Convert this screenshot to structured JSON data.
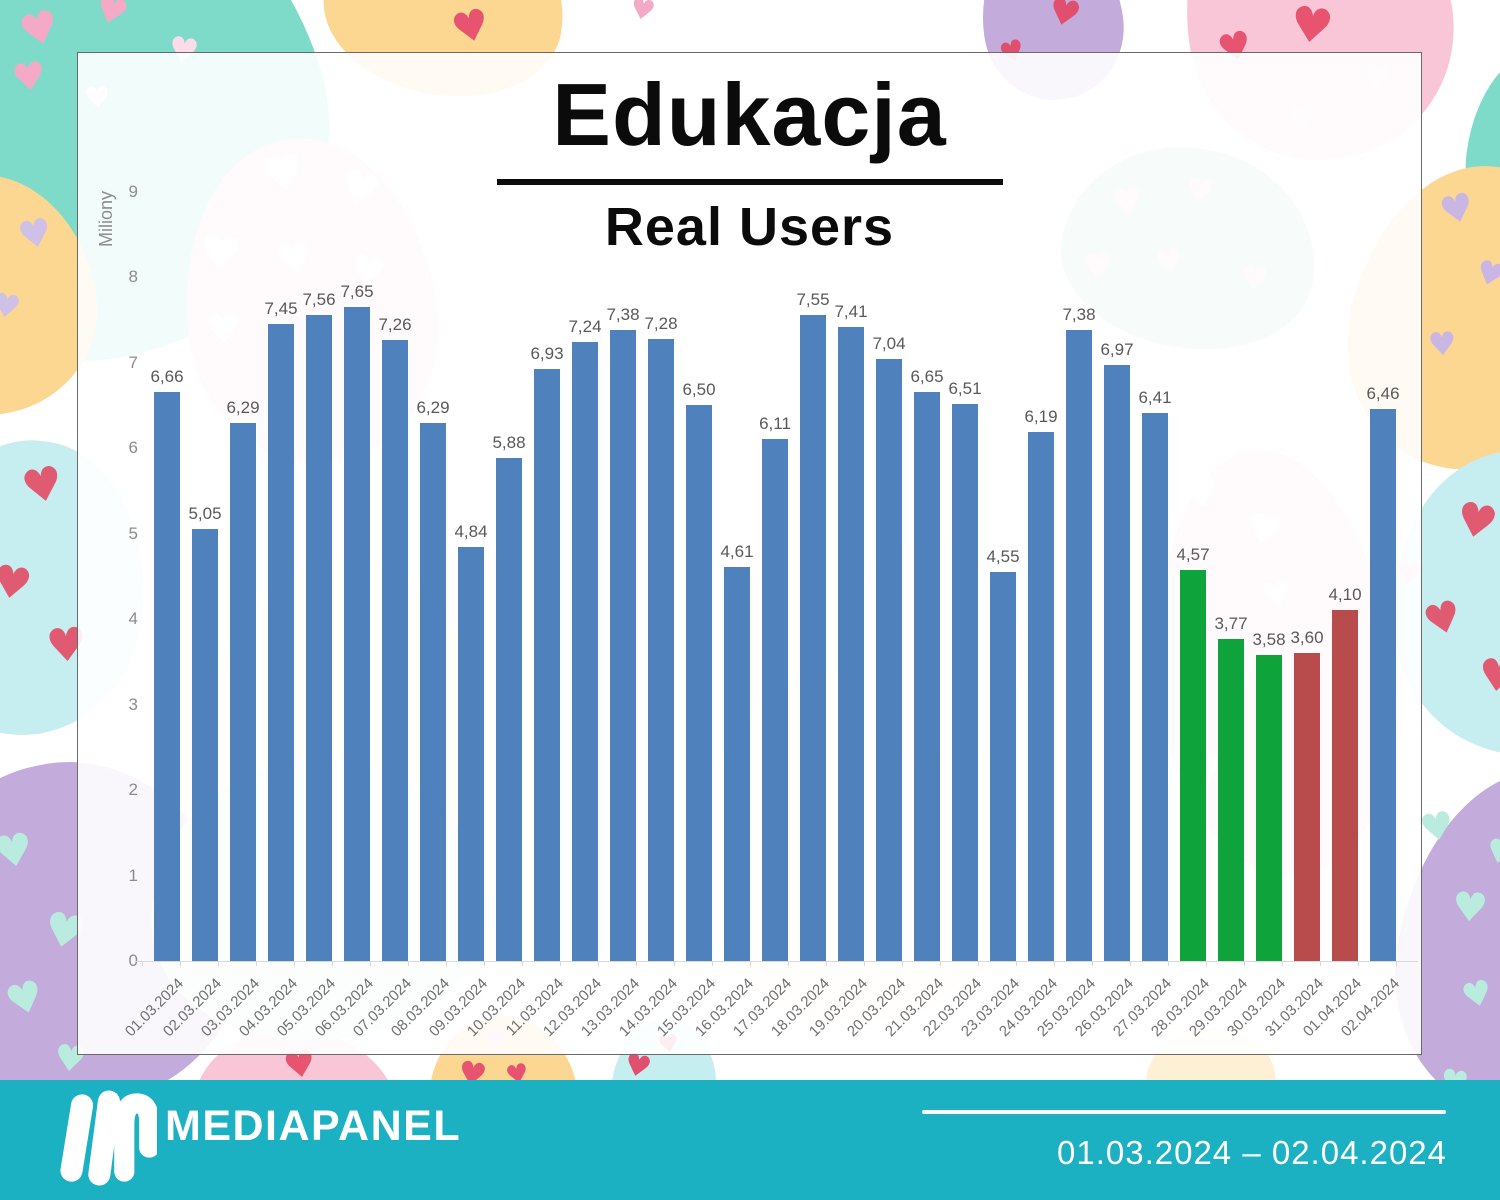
{
  "page": {
    "title": "Edukacja",
    "subtitle": "Real Users"
  },
  "y_axis": {
    "label": "Miliony",
    "ticks": [
      "0",
      "1",
      "2",
      "3",
      "4",
      "5",
      "6",
      "7",
      "8",
      "9"
    ]
  },
  "chart_data": {
    "type": "bar",
    "title": "Edukacja",
    "subtitle": "Real Users",
    "xlabel": "",
    "ylabel": "Miliony",
    "ylim": [
      0,
      9
    ],
    "grid": false,
    "legend": "none",
    "value_decimal_separator": ",",
    "categories": [
      "01.03.2024",
      "02.03.2024",
      "03.03.2024",
      "04.03.2024",
      "05.03.2024",
      "06.03.2024",
      "07.03.2024",
      "08.03.2024",
      "09.03.2024",
      "10.03.2024",
      "11.03.2024",
      "12.03.2024",
      "13.03.2024",
      "14.03.2024",
      "15.03.2024",
      "16.03.2024",
      "17.03.2024",
      "18.03.2024",
      "19.03.2024",
      "20.03.2024",
      "21.03.2024",
      "22.03.2024",
      "23.03.2024",
      "24.03.2024",
      "25.03.2024",
      "26.03.2024",
      "27.03.2024",
      "28.03.2024",
      "29.03.2024",
      "30.03.2024",
      "31.03.2024",
      "01.04.2024",
      "02.04.2024"
    ],
    "values": [
      6.66,
      5.05,
      6.29,
      7.45,
      7.56,
      7.65,
      7.26,
      6.29,
      4.84,
      5.88,
      6.93,
      7.24,
      7.38,
      7.28,
      6.5,
      4.61,
      6.11,
      7.55,
      7.41,
      7.04,
      6.65,
      6.51,
      4.55,
      6.19,
      7.38,
      6.97,
      6.41,
      4.57,
      3.77,
      3.58,
      3.6,
      4.1,
      6.46
    ],
    "bar_colors": [
      "#4f81bd",
      "#4f81bd",
      "#4f81bd",
      "#4f81bd",
      "#4f81bd",
      "#4f81bd",
      "#4f81bd",
      "#4f81bd",
      "#4f81bd",
      "#4f81bd",
      "#4f81bd",
      "#4f81bd",
      "#4f81bd",
      "#4f81bd",
      "#4f81bd",
      "#4f81bd",
      "#4f81bd",
      "#4f81bd",
      "#4f81bd",
      "#4f81bd",
      "#4f81bd",
      "#4f81bd",
      "#4f81bd",
      "#4f81bd",
      "#4f81bd",
      "#4f81bd",
      "#4f81bd",
      "#0fa33c",
      "#0fa33c",
      "#0fa33c",
      "#b84b4b",
      "#b84b4b",
      "#4f81bd"
    ]
  },
  "colors": {
    "bar_blue": "#4f81bd",
    "bar_green": "#0fa33c",
    "bar_red": "#b84b4b",
    "footer_teal": "#1bb0c2"
  },
  "footer": {
    "brand": "MEDIAPANEL",
    "date_range": "01.03.2024 – 02.04.2024"
  }
}
